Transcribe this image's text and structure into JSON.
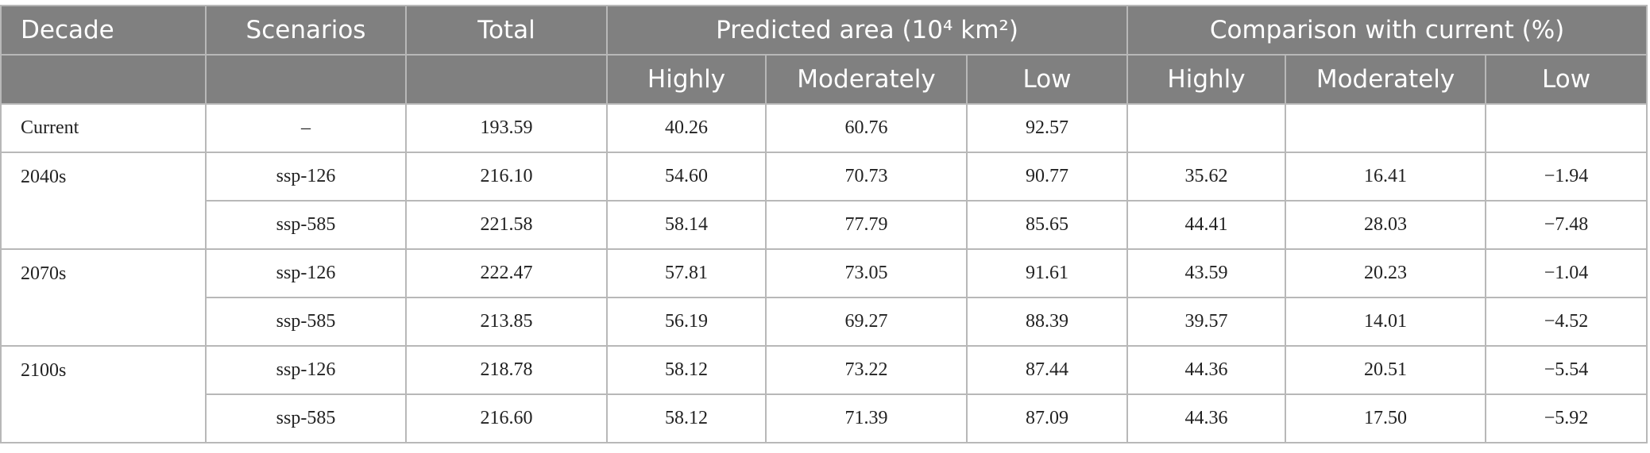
{
  "table": {
    "header": {
      "row1": [
        "Decade",
        "Scenarios",
        "Total",
        "Predicted area (10⁴ km²)",
        "Comparison with current (%)"
      ],
      "row2": [
        "Highly",
        "Moderately",
        "Low",
        "Highly",
        "Moderately",
        "Low"
      ]
    },
    "groups": [
      {
        "decade": "Current",
        "rows": [
          {
            "scenario": "–",
            "values": [
              "193.59",
              "40.26",
              "60.76",
              "92.57"
            ]
          }
        ]
      },
      {
        "decade": "2040s",
        "rows": [
          {
            "scenario": "ssp-126",
            "values": [
              "216.10",
              "54.60",
              "70.73",
              "90.77",
              "35.62",
              "16.41",
              "−1.94"
            ]
          },
          {
            "scenario": "ssp-585",
            "values": [
              "221.58",
              "58.14",
              "77.79",
              "85.65",
              "44.41",
              "28.03",
              "−7.48"
            ]
          }
        ]
      },
      {
        "decade": "2070s",
        "rows": [
          {
            "scenario": "ssp-126",
            "values": [
              "222.47",
              "57.81",
              "73.05",
              "91.61",
              "43.59",
              "20.23",
              "−1.04"
            ]
          },
          {
            "scenario": "ssp-585",
            "values": [
              "213.85",
              "56.19",
              "69.27",
              "88.39",
              "39.57",
              "14.01",
              "−4.52"
            ]
          }
        ]
      },
      {
        "decade": "2100s",
        "rows": [
          {
            "scenario": "ssp-126",
            "values": [
              "218.78",
              "58.12",
              "73.22",
              "87.44",
              "44.36",
              "20.51",
              "−5.54"
            ]
          },
          {
            "scenario": "ssp-585",
            "values": [
              "216.60",
              "58.12",
              "71.39",
              "87.09",
              "44.36",
              "17.50",
              "−5.92"
            ]
          }
        ]
      }
    ]
  }
}
